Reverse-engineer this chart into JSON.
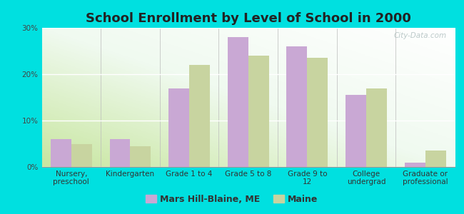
{
  "title": "School Enrollment by Level of School in 2000",
  "categories": [
    "Nursery,\npreschool",
    "Kindergarten",
    "Grade 1 to 4",
    "Grade 5 to 8",
    "Grade 9 to\n12",
    "College\nundergrad",
    "Graduate or\nprofessional"
  ],
  "mars_hill": [
    6.0,
    6.0,
    17.0,
    28.0,
    26.0,
    15.5,
    1.0
  ],
  "maine": [
    5.0,
    4.5,
    22.0,
    24.0,
    23.5,
    17.0,
    3.5
  ],
  "bar_color_mars": "#c9a8d4",
  "bar_color_maine": "#c8d4a0",
  "background_color": "#00e0e0",
  "ylim": [
    0,
    30
  ],
  "yticks": [
    0,
    10,
    20,
    30
  ],
  "ytick_labels": [
    "0%",
    "10%",
    "20%",
    "30%"
  ],
  "legend_mars": "Mars Hill-Blaine, ME",
  "legend_maine": "Maine",
  "watermark": "City-Data.com",
  "title_fontsize": 13,
  "tick_fontsize": 7.5,
  "legend_fontsize": 9
}
